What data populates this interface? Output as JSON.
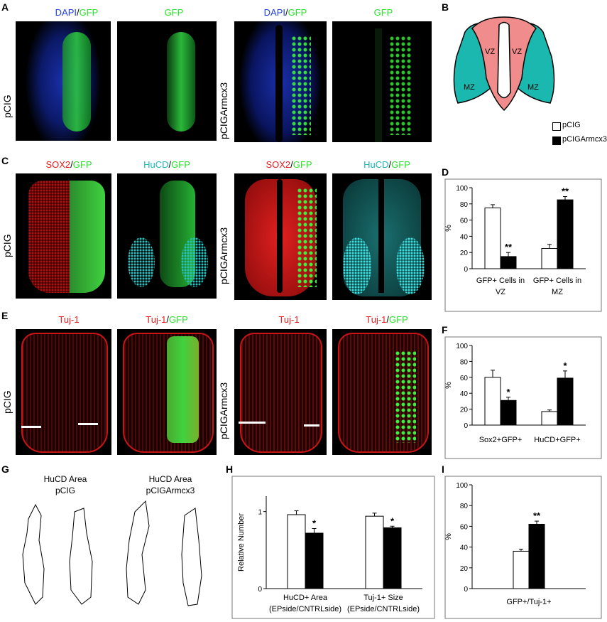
{
  "panel_letters": {
    "A": "A",
    "B": "B",
    "C": "C",
    "D": "D",
    "E": "E",
    "F": "F",
    "G": "G",
    "H": "H",
    "I": "I"
  },
  "row_labels": {
    "pcig": "pCIG",
    "pcigarmcx3": "pCIGArmcx3"
  },
  "captions": {
    "dapi": "DAPI",
    "gfp": "GFP",
    "slash": "/",
    "sox2": "SOX2",
    "hucd": "HuCD",
    "tuj1": "Tuj-1"
  },
  "colors": {
    "dapi": "#1f3fd6",
    "gfp": "#2ee02e",
    "red": "#e81c1c",
    "cyan": "#1ab7b7"
  },
  "schematic": {
    "vz_left": "VZ",
    "vz_right": "VZ",
    "mz_left": "MZ",
    "mz_right": "MZ",
    "vz_color": "#f08c8c",
    "mz_color": "#1bb8b0"
  },
  "legend": {
    "open": "pCIG",
    "filled": "pCIGArmcx3"
  },
  "panel_g": {
    "left_title_1": "HuCD Area",
    "left_title_2": "pCIG",
    "right_title_1": "HuCD Area",
    "right_title_2": "pCIGArmcx3"
  },
  "chart_data": [
    {
      "id": "D",
      "type": "bar",
      "ylabel": "%",
      "ylim": [
        0,
        100
      ],
      "yticks": [
        0,
        20,
        40,
        60,
        80,
        100
      ],
      "categories": [
        "GFP+ Cells in VZ",
        "GFP+ Cells in MZ"
      ],
      "series": [
        {
          "name": "pCIG",
          "values": [
            75,
            25
          ],
          "errors": [
            4,
            5
          ]
        },
        {
          "name": "pCIGArmcx3",
          "values": [
            15,
            85
          ],
          "errors": [
            5,
            4
          ]
        }
      ],
      "annotations": [
        {
          "category": 1,
          "series": 1,
          "text": "**"
        },
        {
          "category": 2,
          "series": 1,
          "text": "**"
        }
      ]
    },
    {
      "id": "F",
      "type": "bar",
      "ylabel": "%",
      "ylim": [
        0,
        100
      ],
      "yticks": [
        0,
        20,
        40,
        60,
        80,
        100
      ],
      "categories": [
        "Sox2+GFP+",
        "HuCD+GFP+"
      ],
      "series": [
        {
          "name": "pCIG",
          "values": [
            60,
            17
          ],
          "errors": [
            9,
            2
          ]
        },
        {
          "name": "pCIGArmcx3",
          "values": [
            31,
            59
          ],
          "errors": [
            4,
            9
          ]
        }
      ],
      "annotations": [
        {
          "category": 1,
          "series": 1,
          "text": "*"
        },
        {
          "category": 2,
          "series": 1,
          "text": "*"
        }
      ]
    },
    {
      "id": "H",
      "type": "bar",
      "ylabel": "Relative Number",
      "ylim": [
        0,
        1.2
      ],
      "yticks": [
        0,
        1
      ],
      "categories": [
        "HuCD+ Area (EPside/CNTRLside)",
        "Tuj-1+ Size (EPside/CNTRLside)"
      ],
      "series": [
        {
          "name": "pCIG",
          "values": [
            0.96,
            0.94
          ],
          "errors": [
            0.05,
            0.04
          ]
        },
        {
          "name": "pCIGArmcx3",
          "values": [
            0.72,
            0.79
          ],
          "errors": [
            0.06,
            0.02
          ]
        }
      ],
      "annotations": [
        {
          "category": 1,
          "series": 1,
          "text": "*"
        },
        {
          "category": 2,
          "series": 1,
          "text": "*"
        }
      ]
    },
    {
      "id": "I",
      "type": "bar",
      "ylabel": "%",
      "ylim": [
        0,
        100
      ],
      "yticks": [
        0,
        20,
        40,
        60,
        80,
        100
      ],
      "categories": [
        "GFP+/Tuj-1+"
      ],
      "series": [
        {
          "name": "pCIG",
          "values": [
            36
          ],
          "errors": [
            2
          ]
        },
        {
          "name": "pCIGArmcx3",
          "values": [
            62
          ],
          "errors": [
            3
          ]
        }
      ],
      "annotations": [
        {
          "category": 1,
          "series": 1,
          "text": "**"
        }
      ]
    }
  ]
}
